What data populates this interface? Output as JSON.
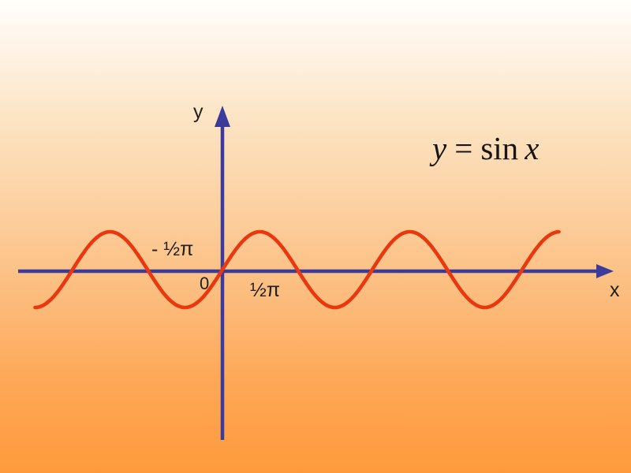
{
  "slide": {
    "background_top_color": "#fffefc",
    "background_bottom_color": "#fe9a3c"
  },
  "equation": {
    "lhs": "y",
    "eq": "=",
    "func": "sin",
    "var": "x",
    "full": "y = sin x"
  },
  "axes": {
    "x_label": "x",
    "y_label": "y",
    "origin_label": "0",
    "tick_left_label": "- ½π",
    "tick_right_label": "½π",
    "color": "#3b3b9b"
  },
  "curve": {
    "color": "#e9380f",
    "equation": "y = sin x"
  },
  "chart_data": {
    "type": "line",
    "title": "y = sin x",
    "function": "y = sin(x)",
    "amplitude": 1,
    "x_range_pi": [
      -2.5,
      4.5
    ],
    "ylim": [
      -1,
      1
    ],
    "grid": false,
    "legend": "none",
    "x_ticks": [
      {
        "x_pi": -0.5,
        "label": "- ½π"
      },
      {
        "x_pi": 0,
        "label": "0"
      },
      {
        "x_pi": 0.5,
        "label": "½π"
      }
    ],
    "key_points": [
      {
        "x": "-2.5π",
        "y": -1
      },
      {
        "x": "-2π",
        "y": 0
      },
      {
        "x": "-1.5π",
        "y": 1
      },
      {
        "x": "-π",
        "y": 0
      },
      {
        "x": "-0.5π",
        "y": -1
      },
      {
        "x": "0",
        "y": 0
      },
      {
        "x": "0.5π",
        "y": 1
      },
      {
        "x": "π",
        "y": 0
      },
      {
        "x": "1.5π",
        "y": -1
      },
      {
        "x": "2π",
        "y": 0
      },
      {
        "x": "2.5π",
        "y": 1
      },
      {
        "x": "3π",
        "y": 0
      },
      {
        "x": "3.5π",
        "y": -1
      },
      {
        "x": "4π",
        "y": 0
      },
      {
        "x": "4.5π",
        "y": 1
      }
    ]
  }
}
